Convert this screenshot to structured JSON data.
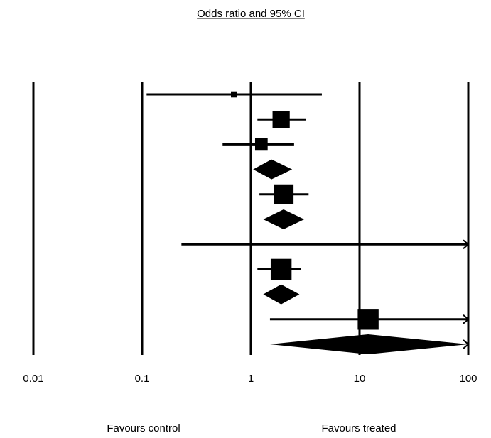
{
  "chart_data": {
    "type": "forest",
    "title": "Odds ratio and 95% CI",
    "x_scale": "log",
    "xlim": [
      0.01,
      100
    ],
    "x_ticks": [
      0.01,
      0.1,
      1,
      10,
      100
    ],
    "x_tick_labels": [
      "0.01",
      "0.1",
      "1",
      "10",
      "100"
    ],
    "grid": "vertical lines at each tick",
    "favours_left": "Favours control",
    "favours_right": "Favours treated",
    "rows": [
      {
        "kind": "study",
        "or": 0.7,
        "lower": 0.11,
        "upper": 4.5,
        "weight": 0.1
      },
      {
        "kind": "study",
        "or": 1.9,
        "lower": 1.15,
        "upper": 3.2,
        "weight": 0.7
      },
      {
        "kind": "study",
        "or": 1.25,
        "lower": 0.55,
        "upper": 2.5,
        "weight": 0.45
      },
      {
        "kind": "summary",
        "or": 1.55,
        "lower": 1.05,
        "upper": 2.4
      },
      {
        "kind": "study",
        "or": 2.0,
        "lower": 1.2,
        "upper": 3.4,
        "weight": 0.85
      },
      {
        "kind": "summary",
        "or": 2.0,
        "lower": 1.3,
        "upper": 3.1
      },
      {
        "kind": "study",
        "or": null,
        "lower": 0.23,
        "upper": 100,
        "weight": 0,
        "upper_truncated": true
      },
      {
        "kind": "study",
        "or": 1.9,
        "lower": 1.15,
        "upper": 2.9,
        "weight": 0.9
      },
      {
        "kind": "summary",
        "or": 1.9,
        "lower": 1.3,
        "upper": 2.8
      },
      {
        "kind": "study",
        "or": 12,
        "lower": 1.5,
        "upper": 100,
        "weight": 0.9,
        "upper_truncated": true
      },
      {
        "kind": "summary",
        "or": 12,
        "lower": 1.5,
        "upper": 100,
        "upper_truncated": true
      }
    ]
  }
}
